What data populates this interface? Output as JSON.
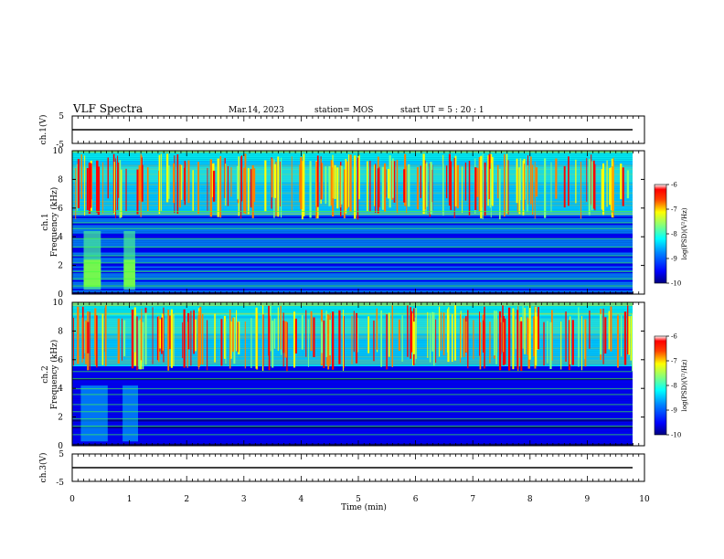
{
  "header": {
    "title": "VLF Spectra",
    "date": "Mar.14, 2023",
    "station": "station= MOS",
    "start": "start  UT =   5 : 20 : 1"
  },
  "chart_data": [
    {
      "type": "line",
      "name": "ch1-waveform",
      "ylabel": "ch.1(V)",
      "ylim": [
        -5,
        5
      ],
      "y_ticks": [
        "5",
        "-5"
      ],
      "x": [
        0,
        10
      ],
      "y": [
        0,
        0
      ]
    },
    {
      "type": "heatmap",
      "name": "ch1-spectrogram",
      "ylabel": "ch.1\nFrequency (kHz)",
      "xlim": [
        0,
        10
      ],
      "ylim": [
        0,
        10
      ],
      "y_ticks": [
        "0",
        "2",
        "4",
        "6",
        "8",
        "10"
      ],
      "burst_times_min": [
        0.2,
        0.5,
        0.9,
        1.1
      ],
      "colorbar": {
        "label": "log(PSD)(V²/Hz)",
        "ticks": [
          "-6",
          "-7",
          "-8",
          "-9",
          "-10"
        ],
        "range": [
          -10,
          -6
        ]
      }
    },
    {
      "type": "heatmap",
      "name": "ch2-spectrogram",
      "ylabel": "ch.2\nFrequency (kHz)",
      "xlim": [
        0,
        10
      ],
      "ylim": [
        0,
        10
      ],
      "y_ticks": [
        "0",
        "2",
        "4",
        "6",
        "8",
        "10"
      ],
      "colorbar": {
        "label": "log(PSD)(V²/Hz)",
        "ticks": [
          "-6",
          "-7",
          "-8",
          "-9",
          "-10"
        ],
        "range": [
          -10,
          -6
        ]
      }
    },
    {
      "type": "line",
      "name": "ch3-waveform",
      "ylabel": "ch.3(V)",
      "ylim": [
        -5,
        5
      ],
      "y_ticks": [
        "5",
        "-5"
      ],
      "x": [
        0,
        10
      ],
      "y": [
        0,
        0
      ]
    }
  ],
  "x_axis": {
    "label": "Time  (min)",
    "ticks": [
      "0",
      "1",
      "2",
      "3",
      "4",
      "5",
      "6",
      "7",
      "8",
      "9",
      "10"
    ],
    "range": [
      0,
      10
    ]
  },
  "colors": {
    "colormap": [
      "#000080",
      "#0000ff",
      "#0080ff",
      "#00ffff",
      "#80ff80",
      "#ffff00",
      "#ff8000",
      "#ff0000",
      "#ffffff"
    ],
    "background": "#ffffff",
    "axis": "#000000"
  }
}
